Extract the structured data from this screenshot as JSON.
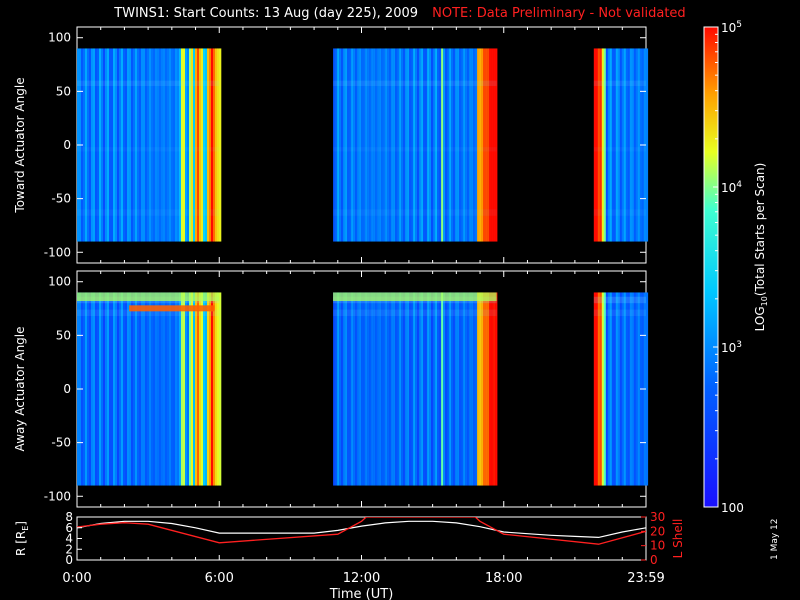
{
  "header": {
    "title": "TWINS1: Start Counts: 13 Aug (day 225), 2009",
    "note": "NOTE: Data Preliminary - Not validated"
  },
  "date_stamp": "1 May 12",
  "colors": {
    "background": "#000000",
    "note": "#ff2020",
    "l_shell_line": "#ff2020",
    "r_line": "#ffffff"
  },
  "chart_data": [
    {
      "type": "heatmap",
      "name": "toward-panel",
      "ylabel": "Toward Actuator Angle",
      "ylim": [
        -110,
        110
      ],
      "yticks": [
        "100",
        "50",
        "0",
        "-50",
        "-100"
      ],
      "data_bands": [
        [
          0,
          6
        ],
        [
          10.8,
          17.7
        ],
        [
          21.8,
          24
        ]
      ],
      "angle_range": [
        -90,
        90
      ],
      "colorscale": "rainbow (blue → cyan → yellow → red)",
      "description_values": {
        "low_count_region": "blue (~10^2.5)",
        "high_count_region_near_hours": [
          5,
          5.8,
          17,
          17.6,
          21.9
        ]
      }
    },
    {
      "type": "heatmap",
      "name": "away-panel",
      "ylabel": "Away Actuator Angle",
      "ylim": [
        -110,
        110
      ],
      "yticks": [
        "100",
        "50",
        "0",
        "-50",
        "-100"
      ],
      "data_bands": [
        [
          0,
          6
        ],
        [
          10.8,
          17.7
        ],
        [
          21.8,
          24
        ]
      ],
      "angle_range": [
        -90,
        90
      ],
      "colorscale": "rainbow (blue → cyan → yellow → red)"
    },
    {
      "type": "line",
      "name": "orbit-panel",
      "xlabel": "Time (UT)",
      "xticks": [
        "0:00",
        "6:00",
        "12:00",
        "18:00",
        "23:59"
      ],
      "ylabel_left": "R [R",
      "ylabel_left_sub": "E",
      "ylabel_left_end": "]",
      "ylabel_right": "L Shell",
      "left_ylim": [
        0,
        8
      ],
      "left_yticks": [
        "8",
        "6",
        "4",
        "2",
        "0"
      ],
      "right_ylim": [
        0,
        30
      ],
      "right_yticks": [
        "30",
        "20",
        "10",
        "0"
      ],
      "series": [
        {
          "name": "R",
          "x": [
            0,
            1,
            2,
            3,
            4,
            5,
            6,
            8,
            10,
            11,
            12,
            13,
            14,
            15,
            16,
            17,
            18,
            19,
            20,
            21,
            22,
            23,
            24
          ],
          "values": [
            6.0,
            6.8,
            7.2,
            7.2,
            6.8,
            6.0,
            5.0,
            5.0,
            5.0,
            5.5,
            6.3,
            6.9,
            7.2,
            7.2,
            6.9,
            6.2,
            5.2,
            4.9,
            4.6,
            4.4,
            4.2,
            5.2,
            6.0
          ]
        },
        {
          "name": "L Shell",
          "x": [
            0,
            1,
            2,
            3,
            6,
            11,
            12,
            12.2,
            16.8,
            17,
            18,
            22,
            24
          ],
          "values": [
            23,
            25,
            26,
            25,
            12,
            18,
            27,
            30,
            30,
            27,
            18,
            11,
            20
          ]
        }
      ]
    }
  ],
  "colorbar": {
    "label_main": "LOG",
    "label_sub": "10",
    "label_rest": "(Total Starts per Scan)",
    "ticks": [
      "10^5",
      "10^4",
      "10^3",
      "100"
    ],
    "tick_values": [
      5,
      4,
      3,
      2
    ]
  }
}
